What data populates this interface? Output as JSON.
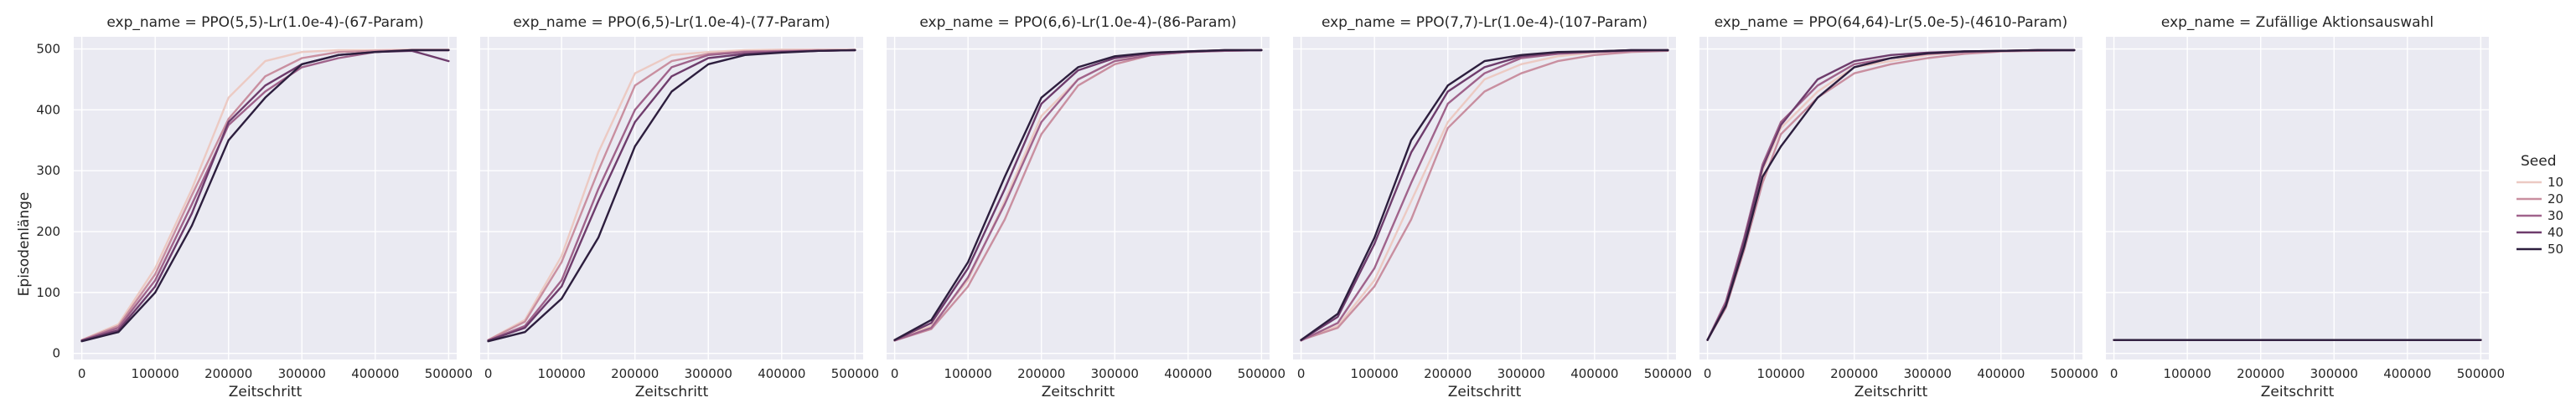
{
  "chart_data": {
    "type": "line",
    "facet_variable": "exp_name",
    "xlabel": "Zeitschritt",
    "ylabel": "Episodenlänge",
    "xlim": [
      -11000,
      511000
    ],
    "ylim": [
      -10,
      520
    ],
    "x_ticks": [
      0,
      100000,
      200000,
      300000,
      400000,
      500000
    ],
    "x_tick_labels": [
      "0",
      "100000",
      "200000",
      "300000",
      "400000",
      "500000"
    ],
    "y_ticks": [
      0,
      100,
      200,
      300,
      400,
      500
    ],
    "y_tick_labels": [
      "0",
      "100",
      "200",
      "300",
      "400",
      "500"
    ],
    "grid": true,
    "legend": {
      "title": "Seed",
      "placement": "right",
      "entries": [
        {
          "name": "10",
          "color": "#eccac3"
        },
        {
          "name": "20",
          "color": "#c98fa0"
        },
        {
          "name": "30",
          "color": "#a0638b"
        },
        {
          "name": "40",
          "color": "#6e3c6c"
        },
        {
          "name": "50",
          "color": "#2d1e3e"
        }
      ]
    },
    "panels": [
      {
        "title": "exp_name = PPO(5,5)-Lr(1.0e-4)-(67-Param)",
        "series": [
          {
            "name": "10",
            "x": [
              0,
              50000,
              100000,
              150000,
              200000,
              250000,
              300000,
              350000,
              400000,
              450000,
              500000
            ],
            "y": [
              22,
              48,
              140,
              270,
              420,
              480,
              495,
              498,
              498,
              499,
              499
            ]
          },
          {
            "name": "20",
            "x": [
              0,
              50000,
              100000,
              150000,
              200000,
              250000,
              300000,
              350000,
              400000,
              450000,
              500000
            ],
            "y": [
              22,
              45,
              130,
              260,
              385,
              455,
              485,
              495,
              497,
              498,
              498
            ]
          },
          {
            "name": "30",
            "x": [
              0,
              50000,
              100000,
              150000,
              200000,
              250000,
              300000,
              350000,
              400000,
              450000,
              500000
            ],
            "y": [
              21,
              42,
              120,
              245,
              375,
              430,
              470,
              485,
              495,
              498,
              498
            ]
          },
          {
            "name": "40",
            "x": [
              0,
              50000,
              100000,
              150000,
              200000,
              250000,
              300000,
              350000,
              400000,
              450000,
              500000
            ],
            "y": [
              21,
              38,
              110,
              230,
              380,
              440,
              475,
              490,
              495,
              497,
              480
            ]
          },
          {
            "name": "50",
            "x": [
              0,
              50000,
              100000,
              150000,
              200000,
              250000,
              300000,
              350000,
              400000,
              450000,
              500000
            ],
            "y": [
              20,
              35,
              100,
              210,
              350,
              420,
              475,
              490,
              495,
              498,
              498
            ]
          }
        ]
      },
      {
        "title": "exp_name = PPO(6,5)-Lr(1.0e-4)-(77-Param)",
        "series": [
          {
            "name": "10",
            "x": [
              0,
              50000,
              100000,
              150000,
              200000,
              250000,
              300000,
              350000,
              400000,
              450000,
              500000
            ],
            "y": [
              22,
              55,
              160,
              330,
              460,
              490,
              495,
              498,
              499,
              499,
              499
            ]
          },
          {
            "name": "20",
            "x": [
              0,
              50000,
              100000,
              150000,
              200000,
              250000,
              300000,
              350000,
              400000,
              450000,
              500000
            ],
            "y": [
              22,
              52,
              150,
              300,
              440,
              480,
              492,
              496,
              497,
              498,
              498
            ]
          },
          {
            "name": "30",
            "x": [
              0,
              50000,
              100000,
              150000,
              200000,
              250000,
              300000,
              350000,
              400000,
              450000,
              500000
            ],
            "y": [
              21,
              45,
              120,
              270,
              400,
              470,
              490,
              495,
              496,
              497,
              498
            ]
          },
          {
            "name": "40",
            "x": [
              0,
              50000,
              100000,
              150000,
              200000,
              250000,
              300000,
              350000,
              400000,
              450000,
              500000
            ],
            "y": [
              21,
              42,
              110,
              250,
              380,
              455,
              485,
              492,
              495,
              497,
              498
            ]
          },
          {
            "name": "50",
            "x": [
              0,
              50000,
              100000,
              150000,
              200000,
              250000,
              300000,
              350000,
              400000,
              450000,
              500000
            ],
            "y": [
              20,
              35,
              90,
              190,
              340,
              430,
              475,
              490,
              494,
              497,
              498
            ]
          }
        ]
      },
      {
        "title": "exp_name = PPO(6,6)-Lr(1.0e-4)-(86-Param)",
        "series": [
          {
            "name": "10",
            "x": [
              0,
              50000,
              100000,
              150000,
              200000,
              250000,
              300000,
              350000,
              400000,
              450000,
              500000
            ],
            "y": [
              22,
              45,
              120,
              250,
              390,
              450,
              480,
              492,
              496,
              498,
              498
            ]
          },
          {
            "name": "20",
            "x": [
              0,
              50000,
              100000,
              150000,
              200000,
              250000,
              300000,
              350000,
              400000,
              450000,
              500000
            ],
            "y": [
              21,
              40,
              110,
              220,
              360,
              440,
              475,
              490,
              495,
              497,
              498
            ]
          },
          {
            "name": "30",
            "x": [
              0,
              50000,
              100000,
              150000,
              200000,
              250000,
              300000,
              350000,
              400000,
              450000,
              500000
            ],
            "y": [
              21,
              42,
              125,
              245,
              380,
              450,
              480,
              490,
              495,
              497,
              498
            ]
          },
          {
            "name": "40",
            "x": [
              0,
              50000,
              100000,
              150000,
              200000,
              250000,
              300000,
              350000,
              400000,
              450000,
              500000
            ],
            "y": [
              22,
              50,
              140,
              270,
              410,
              465,
              485,
              493,
              496,
              498,
              498
            ]
          },
          {
            "name": "50",
            "x": [
              0,
              50000,
              100000,
              150000,
              200000,
              250000,
              300000,
              350000,
              400000,
              450000,
              500000
            ],
            "y": [
              22,
              55,
              150,
              290,
              420,
              470,
              488,
              494,
              496,
              498,
              498
            ]
          }
        ]
      },
      {
        "title": "exp_name = PPO(7,7)-Lr(1.0e-4)-(107-Param)",
        "series": [
          {
            "name": "10",
            "x": [
              0,
              50000,
              100000,
              150000,
              200000,
              250000,
              300000,
              350000,
              400000,
              450000,
              500000
            ],
            "y": [
              22,
              45,
              120,
              250,
              380,
              450,
              475,
              488,
              494,
              497,
              498
            ]
          },
          {
            "name": "20",
            "x": [
              0,
              50000,
              100000,
              150000,
              200000,
              250000,
              300000,
              350000,
              400000,
              450000,
              500000
            ],
            "y": [
              22,
              42,
              110,
              220,
              370,
              430,
              460,
              480,
              490,
              495,
              497
            ]
          },
          {
            "name": "30",
            "x": [
              0,
              50000,
              100000,
              150000,
              200000,
              250000,
              300000,
              350000,
              400000,
              450000,
              500000
            ],
            "y": [
              21,
              50,
              140,
              280,
              410,
              460,
              485,
              492,
              495,
              497,
              498
            ]
          },
          {
            "name": "40",
            "x": [
              0,
              50000,
              100000,
              150000,
              200000,
              250000,
              300000,
              350000,
              400000,
              450000,
              500000
            ],
            "y": [
              22,
              60,
              180,
              330,
              430,
              470,
              488,
              494,
              496,
              498,
              498
            ]
          },
          {
            "name": "50",
            "x": [
              0,
              50000,
              100000,
              150000,
              200000,
              250000,
              300000,
              350000,
              400000,
              450000,
              500000
            ],
            "y": [
              22,
              65,
              190,
              350,
              440,
              480,
              490,
              495,
              496,
              498,
              498
            ]
          }
        ]
      },
      {
        "title": "exp_name = PPO(64,64)-Lr(5.0e-5)-(4610-Param)",
        "series": [
          {
            "name": "10",
            "x": [
              0,
              25000,
              50000,
              75000,
              100000,
              150000,
              200000,
              250000,
              300000,
              350000,
              400000,
              450000,
              500000
            ],
            "y": [
              22,
              80,
              180,
              300,
              370,
              430,
              470,
              480,
              490,
              495,
              497,
              498,
              498
            ]
          },
          {
            "name": "20",
            "x": [
              0,
              25000,
              50000,
              75000,
              100000,
              150000,
              200000,
              250000,
              300000,
              350000,
              400000,
              450000,
              500000
            ],
            "y": [
              22,
              75,
              170,
              280,
              360,
              420,
              460,
              475,
              485,
              492,
              496,
              497,
              498
            ]
          },
          {
            "name": "30",
            "x": [
              0,
              25000,
              50000,
              75000,
              100000,
              150000,
              200000,
              250000,
              300000,
              350000,
              400000,
              450000,
              500000
            ],
            "y": [
              22,
              85,
              190,
              310,
              380,
              440,
              475,
              485,
              492,
              495,
              497,
              498,
              498
            ]
          },
          {
            "name": "40",
            "x": [
              0,
              25000,
              50000,
              75000,
              100000,
              150000,
              200000,
              250000,
              300000,
              350000,
              400000,
              450000,
              500000
            ],
            "y": [
              22,
              80,
              185,
              305,
              375,
              450,
              480,
              490,
              494,
              496,
              497,
              498,
              498
            ]
          },
          {
            "name": "50",
            "x": [
              0,
              25000,
              50000,
              75000,
              100000,
              150000,
              200000,
              250000,
              300000,
              350000,
              400000,
              450000,
              500000
            ],
            "y": [
              22,
              78,
              175,
              290,
              340,
              420,
              470,
              485,
              493,
              496,
              497,
              498,
              498
            ]
          }
        ]
      },
      {
        "title": "exp_name = Zufällige Aktionsauswahl",
        "series": [
          {
            "name": "10",
            "x": [
              0,
              100000,
              200000,
              300000,
              400000,
              500000
            ],
            "y": [
              22,
              22,
              22,
              22,
              22,
              22
            ]
          },
          {
            "name": "20",
            "x": [
              0,
              100000,
              200000,
              300000,
              400000,
              500000
            ],
            "y": [
              22,
              22,
              22,
              22,
              22,
              22
            ]
          },
          {
            "name": "30",
            "x": [
              0,
              100000,
              200000,
              300000,
              400000,
              500000
            ],
            "y": [
              22,
              22,
              22,
              22,
              22,
              22
            ]
          },
          {
            "name": "40",
            "x": [
              0,
              100000,
              200000,
              300000,
              400000,
              500000
            ],
            "y": [
              22,
              22,
              22,
              22,
              22,
              22
            ]
          },
          {
            "name": "50",
            "x": [
              0,
              100000,
              200000,
              300000,
              400000,
              500000
            ],
            "y": [
              22,
              22,
              22,
              22,
              22,
              22
            ]
          }
        ]
      }
    ]
  },
  "colors": {
    "panel_background": "#eaeaf2",
    "grid": "#ffffff",
    "text": "#262626"
  }
}
